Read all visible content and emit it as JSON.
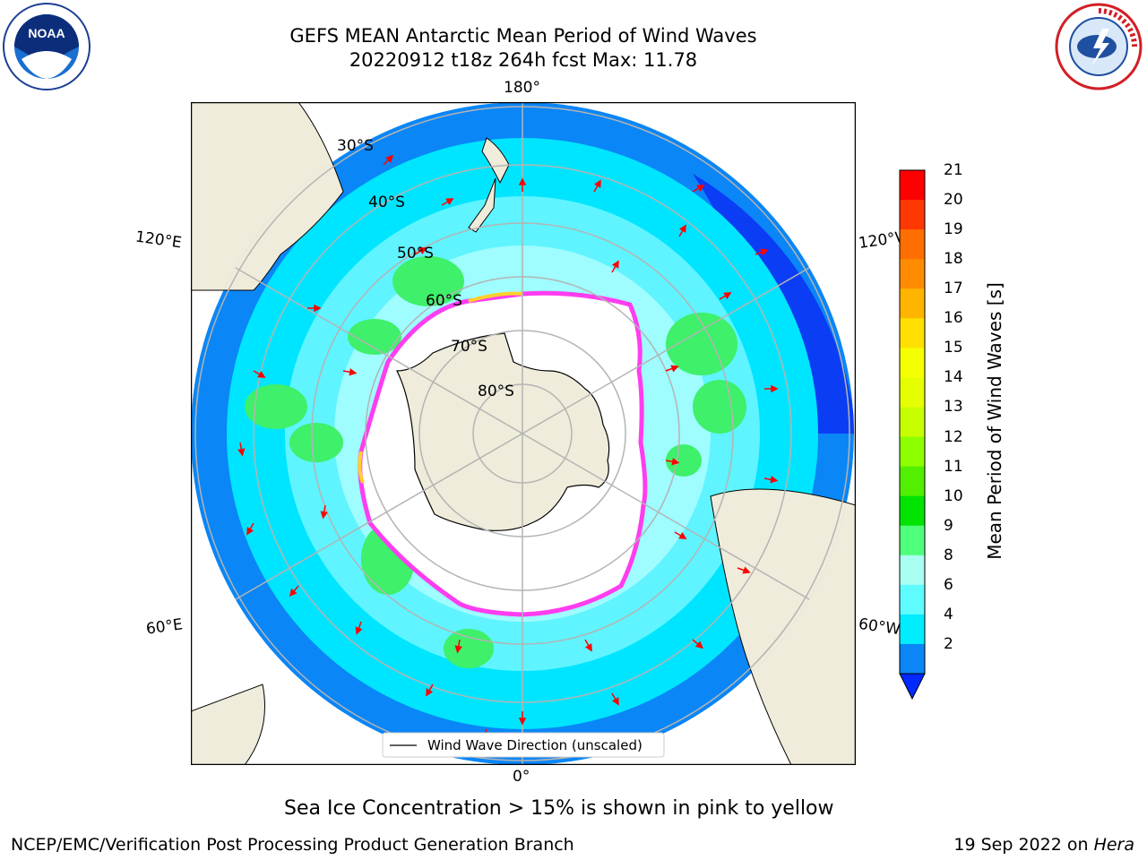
{
  "title": {
    "line1": "GEFS MEAN Antarctic Mean Period of Wind Waves",
    "line2": "20220912 t18z 264h fcst    Max: 11.78"
  },
  "logos": {
    "left": {
      "text": "NOAA",
      "icon": "noaa-logo-icon"
    },
    "right": {
      "text": "NATIONAL WEATHER SERVICE",
      "icon": "nws-logo-icon"
    }
  },
  "map": {
    "longitude_labels": {
      "top": "180°",
      "bottom": "0°",
      "left_upper": "120°E",
      "left_lower": "60°E",
      "right_upper": "120°W",
      "right_lower": "60°W"
    },
    "latitude_labels": [
      "30°S",
      "40°S",
      "50°S",
      "60°S",
      "70°S",
      "80°S"
    ],
    "legend": "Wind Wave Direction (unscaled)",
    "colors": {
      "land": "#efecdb",
      "ocean_deep_blue": "#0b3df5",
      "blue": "#0a86f7",
      "cyan": "#00e5ff",
      "light_cyan": "#5ff4ff",
      "pale_cyan": "#9ffcff",
      "green": "#3ef06a",
      "ice_pink": "#ff3df0",
      "ice_yellow": "#ffd02a",
      "arrow": "#ff0000",
      "grid": "#b4b4b4"
    }
  },
  "colorbar": {
    "label": "Mean Period of Wind Waves [s]",
    "ticks": [
      "21",
      "20",
      "19",
      "18",
      "17",
      "16",
      "15",
      "14",
      "13",
      "12",
      "11",
      "10",
      "9",
      "8",
      "6",
      "4",
      "2"
    ],
    "segment_colors": [
      "#ff0000",
      "#ff3700",
      "#ff6e00",
      "#ff8c00",
      "#ffb400",
      "#ffe000",
      "#f6ff00",
      "#e6ff00",
      "#c8ff00",
      "#8cff00",
      "#52ef00",
      "#00e400",
      "#50ff7a",
      "#a8fff2",
      "#5ffcff",
      "#00ecff",
      "#0a86f7"
    ],
    "extend_color": "#0028ff"
  },
  "captions": {
    "sea_ice": "Sea Ice Concentration > 15% is shown in pink to yellow",
    "footer_left": "NCEP/EMC/Verification Post Processing Product Generation Branch",
    "footer_right_prefix": "19 Sep 2022 on ",
    "footer_right_machine": "Hera"
  }
}
